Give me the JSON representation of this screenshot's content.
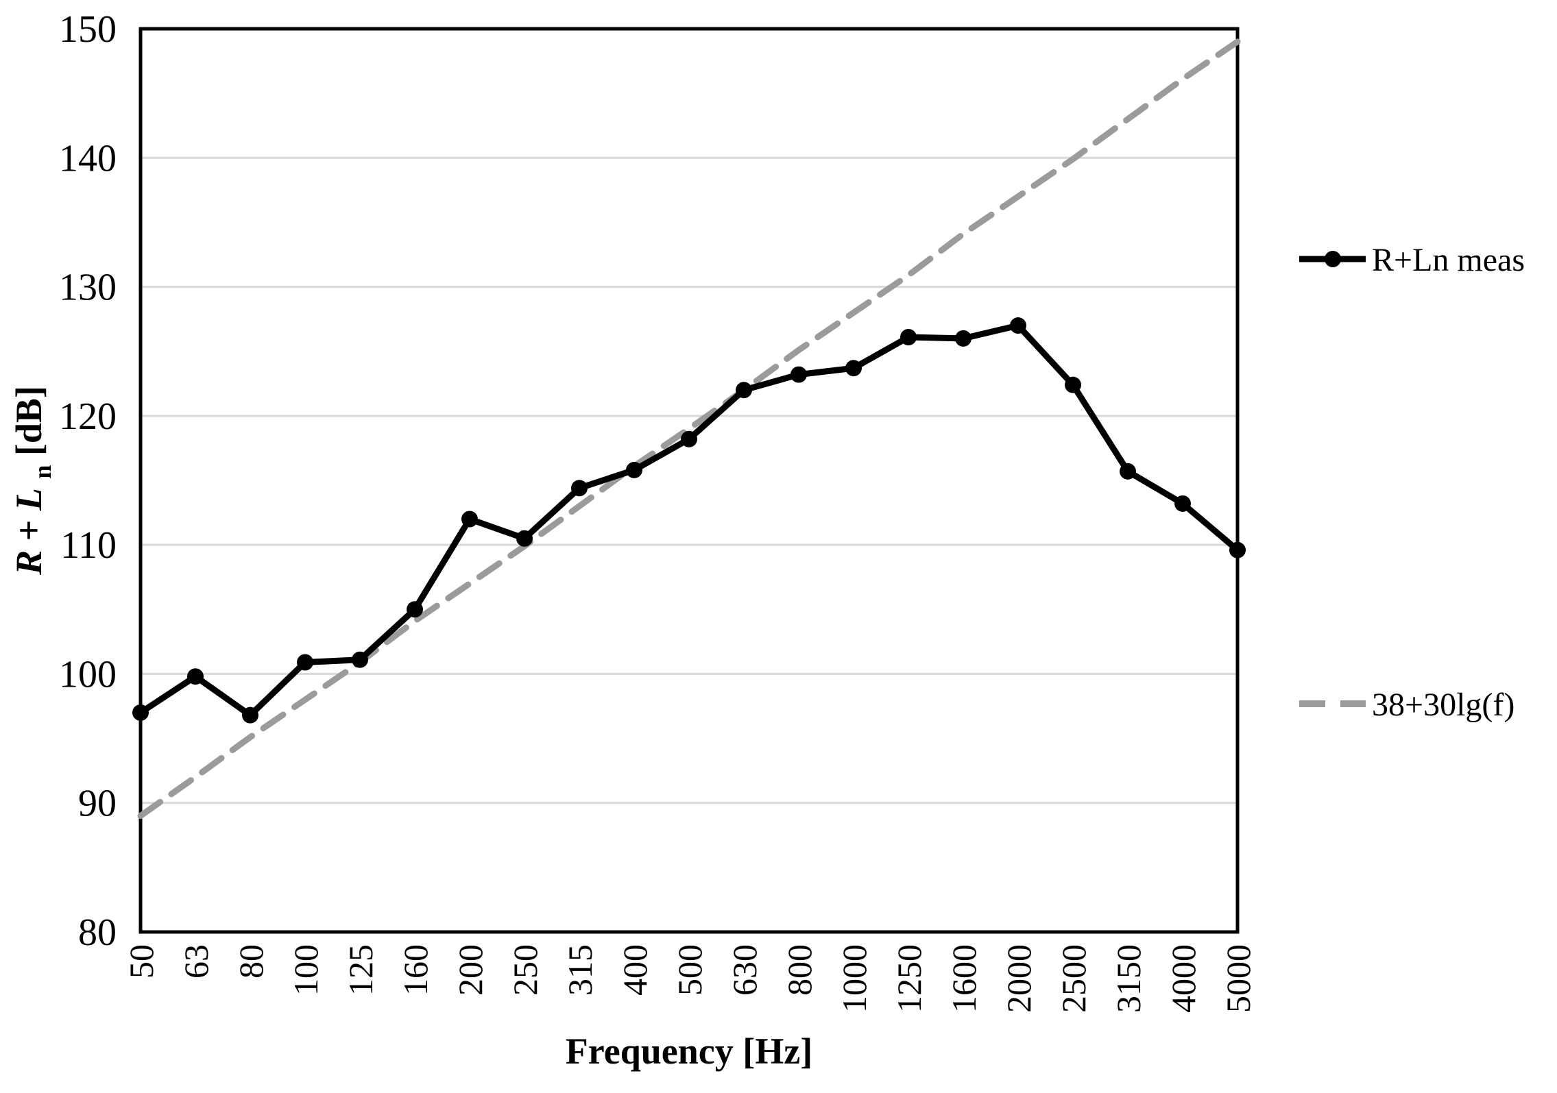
{
  "figure": {
    "background": "#ffffff",
    "plot_border_color": "#000000",
    "gridline_color": "#d9d9d9"
  },
  "chart_data": {
    "type": "line",
    "title": "",
    "xlabel": "Frequency [Hz]",
    "ylabel": "R+Ln [dB]",
    "ylabel_parts": {
      "r_italic": "R",
      "plus": "+",
      "l_italic": "L",
      "n_subscript": "n",
      "unit": " [dB]"
    },
    "categories": [
      "50",
      "63",
      "80",
      "100",
      "125",
      "160",
      "200",
      "250",
      "315",
      "400",
      "500",
      "630",
      "800",
      "1000",
      "1250",
      "1600",
      "2000",
      "2500",
      "3150",
      "4000",
      "5000"
    ],
    "ylim": [
      80,
      150
    ],
    "ytick_labels": [
      "80",
      "90",
      "100",
      "110",
      "120",
      "130",
      "140",
      "150"
    ],
    "ytick_step": 10,
    "grid": "horizontal-only",
    "legend_position": "right-outside",
    "series": [
      {
        "name": "R+Ln meas",
        "style": "solid-with-markers",
        "marker": "circle",
        "color": "#000000",
        "line_width": 9,
        "marker_radius": 12,
        "values": [
          97.0,
          99.8,
          96.8,
          100.9,
          101.1,
          105.0,
          112.0,
          110.5,
          114.4,
          115.8,
          118.2,
          122.0,
          123.2,
          123.7,
          126.1,
          126.0,
          127.0,
          122.4,
          115.7,
          113.2,
          109.6
        ]
      },
      {
        "name": "38+30lg(f)",
        "style": "dashed",
        "color": "#9b9b9b",
        "line_width": 9,
        "dash_pattern": "35 20",
        "values": [
          89.0,
          92.0,
          95.1,
          98.0,
          100.9,
          104.1,
          107.0,
          109.9,
          113.0,
          116.1,
          119.0,
          122.0,
          125.1,
          128.0,
          130.9,
          134.1,
          137.0,
          139.9,
          143.0,
          146.1,
          149.0
        ]
      }
    ]
  }
}
